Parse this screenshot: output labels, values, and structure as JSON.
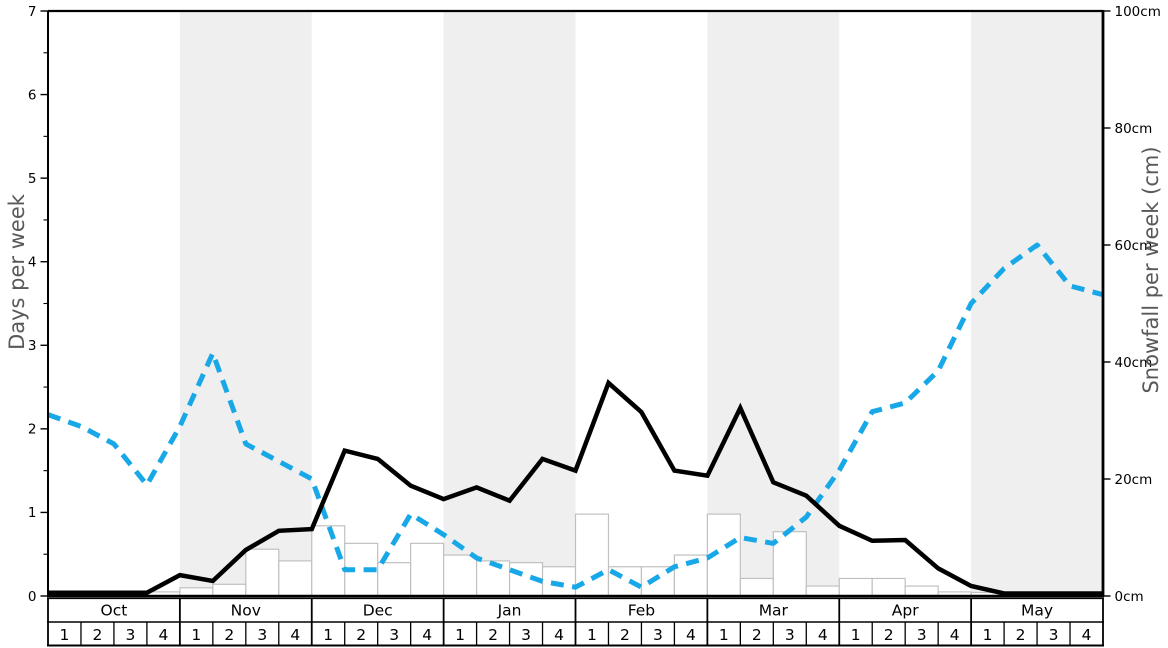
{
  "chart_data": {
    "type": "line+bar",
    "description": "Weekly snow history chart: black solid line = days per week (left axis), blue dashed line = snowfall per week in cm (right axis), white outlined bars = snowfall per week in cm.",
    "months": [
      "Oct",
      "Nov",
      "Dec",
      "Jan",
      "Feb",
      "Mar",
      "Apr",
      "May"
    ],
    "week_labels": [
      "1",
      "2",
      "3",
      "4"
    ],
    "shaded_months": [
      "Nov",
      "Jan",
      "Mar",
      "May"
    ],
    "left_axis": {
      "label": "Days per week",
      "ticks": [
        0,
        1,
        2,
        3,
        4,
        5,
        6,
        7
      ],
      "range": [
        0,
        7
      ],
      "minor_tick_step": 0.5
    },
    "right_axis": {
      "label": "Snowfall per week (cm)",
      "tick_labels": [
        "0cm",
        "20cm",
        "40cm",
        "60cm",
        "80cm",
        "100cm"
      ],
      "tick_values": [
        0,
        20,
        40,
        60,
        80,
        100
      ],
      "range": [
        0,
        100
      ]
    },
    "x_mode": "week_boundaries",
    "series": [
      {
        "name": "days_per_week",
        "type": "line",
        "line_style": "solid",
        "color": "#000000",
        "axis": "left",
        "values": [
          0.04,
          0.04,
          0.04,
          0.04,
          0.25,
          0.18,
          0.55,
          0.78,
          0.8,
          1.74,
          1.64,
          1.32,
          1.16,
          1.3,
          1.14,
          1.64,
          1.5,
          2.55,
          2.2,
          1.5,
          1.44,
          2.25,
          1.36,
          1.2,
          0.84,
          0.66,
          0.67,
          0.33,
          0.12,
          0.03,
          0.03,
          0.03,
          0.03
        ]
      },
      {
        "name": "snowfall_per_week_cm",
        "type": "line",
        "line_style": "dashed",
        "color": "#18a8e8",
        "axis": "right",
        "values": [
          31,
          29,
          26,
          19,
          29,
          41.5,
          26,
          23,
          20,
          4.5,
          4.5,
          14,
          10.5,
          6.5,
          4.5,
          2.5,
          1.5,
          4.5,
          1.5,
          5,
          6.5,
          10,
          9,
          13.5,
          21.5,
          31.5,
          33,
          38.5,
          50,
          56,
          60,
          53,
          51.5
        ]
      },
      {
        "name": "snowfall_bars_cm",
        "type": "bar",
        "axis": "right",
        "fill": "#ffffff",
        "stroke": "#c0c0c0",
        "values": [
          0,
          0,
          0,
          0.7,
          1.4,
          2,
          8,
          6,
          12,
          9,
          5.7,
          9,
          7,
          6,
          5.7,
          5,
          14,
          5,
          5,
          7,
          14,
          3,
          11,
          1.7,
          3,
          3,
          1.7,
          0.7,
          0,
          0,
          0,
          0
        ]
      }
    ],
    "colors": {
      "background": "#ffffff",
      "month_band": "#efefef",
      "bar_fill": "#ffffff",
      "bar_border": "#c0c0c0",
      "days_line": "#000000",
      "snowfall_line": "#18a8e8",
      "axis_title": "#595959",
      "tick_label": "#000000",
      "table_border": "#000000"
    }
  }
}
